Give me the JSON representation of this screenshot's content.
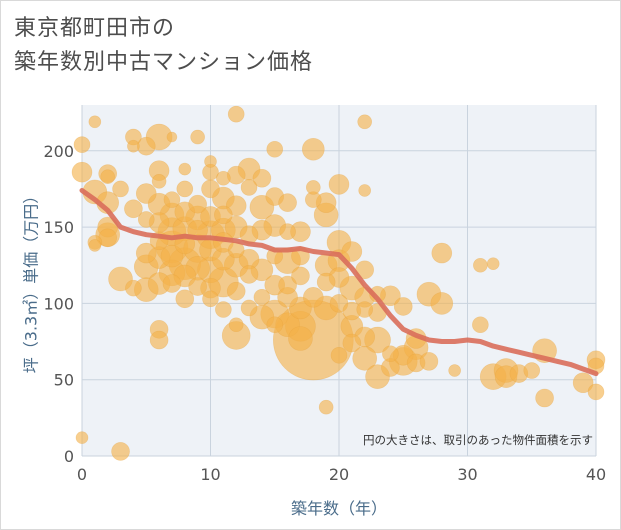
{
  "title_line1": "東京都町田市の",
  "title_line2": "築年数別中古マンション価格",
  "note": "円の大きさは、取引のあった物件面積を示す",
  "colors": {
    "bubble": "#f3b24a",
    "bubble_stroke": "#e6a03a",
    "trend": "#d96e5a",
    "plot_bg": "#eef2f7",
    "grid": "#ffffff",
    "axis_label": "#4a6c8a"
  },
  "chart_data": {
    "type": "scatter",
    "xlabel": "築年数（年）",
    "ylabel": "坪（3.3㎡）単価（万円）",
    "xlim": [
      0,
      40
    ],
    "ylim": [
      0,
      230
    ],
    "x_ticks": [
      0,
      10,
      20,
      30,
      40
    ],
    "y_ticks": [
      0,
      50,
      100,
      150,
      200
    ],
    "grid": true,
    "trend_line": [
      [
        0,
        174
      ],
      [
        1,
        168
      ],
      [
        2,
        161
      ],
      [
        3,
        150
      ],
      [
        4,
        147
      ],
      [
        5,
        145
      ],
      [
        6,
        144
      ],
      [
        7,
        143
      ],
      [
        8,
        144
      ],
      [
        9,
        143
      ],
      [
        10,
        143
      ],
      [
        11,
        142
      ],
      [
        12,
        141
      ],
      [
        13,
        139
      ],
      [
        14,
        138
      ],
      [
        15,
        135
      ],
      [
        16,
        135
      ],
      [
        17,
        136
      ],
      [
        18,
        134
      ],
      [
        19,
        133
      ],
      [
        20,
        132
      ],
      [
        21,
        123
      ],
      [
        22,
        112
      ],
      [
        23,
        103
      ],
      [
        24,
        92
      ],
      [
        25,
        83
      ],
      [
        26,
        79
      ],
      [
        27,
        76
      ],
      [
        28,
        75
      ],
      [
        29,
        75
      ],
      [
        30,
        76
      ],
      [
        31,
        75
      ],
      [
        32,
        72
      ],
      [
        33,
        70
      ],
      [
        34,
        68
      ],
      [
        35,
        66
      ],
      [
        36,
        64
      ],
      [
        37,
        62
      ],
      [
        38,
        60
      ],
      [
        39,
        57
      ],
      [
        40,
        54
      ]
    ],
    "points": [
      [
        0,
        186,
        10
      ],
      [
        0,
        204,
        8
      ],
      [
        0,
        12,
        6
      ],
      [
        1,
        219,
        6
      ],
      [
        1,
        173,
        12
      ],
      [
        1,
        140,
        7
      ],
      [
        1,
        138,
        6
      ],
      [
        2,
        185,
        9
      ],
      [
        2,
        183,
        7
      ],
      [
        2,
        166,
        11
      ],
      [
        2,
        150,
        10
      ],
      [
        2,
        145,
        12
      ],
      [
        2,
        143,
        9
      ],
      [
        3,
        175,
        8
      ],
      [
        3,
        116,
        12
      ],
      [
        3,
        3,
        9
      ],
      [
        4,
        209,
        8
      ],
      [
        4,
        203,
        6
      ],
      [
        4,
        162,
        9
      ],
      [
        4,
        110,
        8
      ],
      [
        5,
        203,
        9
      ],
      [
        5,
        172,
        10
      ],
      [
        5,
        155,
        8
      ],
      [
        5,
        133,
        10
      ],
      [
        5,
        124,
        12
      ],
      [
        5,
        109,
        12
      ],
      [
        6,
        209,
        13
      ],
      [
        6,
        187,
        10
      ],
      [
        6,
        180,
        7
      ],
      [
        6,
        165,
        11
      ],
      [
        6,
        153,
        10
      ],
      [
        6,
        141,
        9
      ],
      [
        6,
        130,
        11
      ],
      [
        6,
        113,
        11
      ],
      [
        6,
        83,
        9
      ],
      [
        6,
        76,
        9
      ],
      [
        7,
        209,
        5
      ],
      [
        7,
        168,
        8
      ],
      [
        7,
        158,
        12
      ],
      [
        7,
        147,
        14
      ],
      [
        7,
        137,
        16
      ],
      [
        7,
        131,
        11
      ],
      [
        7,
        120,
        13
      ],
      [
        7,
        113,
        9
      ],
      [
        8,
        188,
        6
      ],
      [
        8,
        175,
        8
      ],
      [
        8,
        160,
        10
      ],
      [
        8,
        149,
        12
      ],
      [
        8,
        139,
        10
      ],
      [
        8,
        126,
        16
      ],
      [
        8,
        118,
        11
      ],
      [
        8,
        103,
        9
      ],
      [
        9,
        209,
        7
      ],
      [
        9,
        165,
        9
      ],
      [
        9,
        156,
        12
      ],
      [
        9,
        148,
        10
      ],
      [
        9,
        136,
        14
      ],
      [
        9,
        123,
        12
      ],
      [
        9,
        111,
        9
      ],
      [
        10,
        193,
        6
      ],
      [
        10,
        186,
        8
      ],
      [
        10,
        175,
        9
      ],
      [
        10,
        157,
        10
      ],
      [
        10,
        145,
        14
      ],
      [
        10,
        135,
        11
      ],
      [
        10,
        122,
        13
      ],
      [
        10,
        110,
        10
      ],
      [
        10,
        103,
        8
      ],
      [
        11,
        182,
        7
      ],
      [
        11,
        169,
        11
      ],
      [
        11,
        158,
        9
      ],
      [
        11,
        148,
        12
      ],
      [
        11,
        140,
        10
      ],
      [
        11,
        129,
        11
      ],
      [
        11,
        114,
        15
      ],
      [
        11,
        96,
        8
      ],
      [
        12,
        224,
        8
      ],
      [
        12,
        184,
        9
      ],
      [
        12,
        164,
        10
      ],
      [
        12,
        150,
        11
      ],
      [
        12,
        135,
        8
      ],
      [
        12,
        125,
        12
      ],
      [
        12,
        108,
        9
      ],
      [
        12,
        79,
        14
      ],
      [
        12,
        86,
        7
      ],
      [
        13,
        188,
        11
      ],
      [
        13,
        176,
        8
      ],
      [
        13,
        145,
        9
      ],
      [
        13,
        129,
        10
      ],
      [
        13,
        119,
        9
      ],
      [
        13,
        97,
        8
      ],
      [
        14,
        182,
        9
      ],
      [
        14,
        163,
        12
      ],
      [
        14,
        148,
        10
      ],
      [
        14,
        122,
        11
      ],
      [
        14,
        104,
        8
      ],
      [
        14,
        91,
        12
      ],
      [
        15,
        201,
        8
      ],
      [
        15,
        170,
        9
      ],
      [
        15,
        151,
        11
      ],
      [
        15,
        131,
        8
      ],
      [
        15,
        112,
        10
      ],
      [
        15,
        93,
        14
      ],
      [
        15,
        86,
        8
      ],
      [
        16,
        166,
        9
      ],
      [
        16,
        147,
        8
      ],
      [
        16,
        128,
        13
      ],
      [
        16,
        112,
        9
      ],
      [
        16,
        104,
        10
      ],
      [
        16,
        86,
        12
      ],
      [
        17,
        147,
        10
      ],
      [
        17,
        131,
        9
      ],
      [
        17,
        118,
        9
      ],
      [
        17,
        97,
        11
      ],
      [
        17,
        85,
        15
      ],
      [
        17,
        77,
        12
      ],
      [
        18,
        201,
        11
      ],
      [
        18,
        176,
        7
      ],
      [
        18,
        168,
        8
      ],
      [
        18,
        104,
        10
      ],
      [
        18,
        76,
        40
      ],
      [
        19,
        166,
        10
      ],
      [
        19,
        158,
        12
      ],
      [
        19,
        125,
        11
      ],
      [
        19,
        114,
        9
      ],
      [
        19,
        97,
        12
      ],
      [
        19,
        32,
        7
      ],
      [
        20,
        178,
        10
      ],
      [
        20,
        140,
        12
      ],
      [
        20,
        128,
        11
      ],
      [
        20,
        117,
        10
      ],
      [
        20,
        100,
        9
      ],
      [
        20,
        66,
        8
      ],
      [
        21,
        134,
        10
      ],
      [
        21,
        110,
        12
      ],
      [
        21,
        95,
        9
      ],
      [
        21,
        85,
        11
      ],
      [
        21,
        74,
        9
      ],
      [
        22,
        219,
        7
      ],
      [
        22,
        174,
        6
      ],
      [
        22,
        122,
        9
      ],
      [
        22,
        104,
        10
      ],
      [
        22,
        96,
        8
      ],
      [
        22,
        78,
        10
      ],
      [
        22,
        64,
        12
      ],
      [
        23,
        106,
        8
      ],
      [
        23,
        94,
        9
      ],
      [
        23,
        76,
        13
      ],
      [
        23,
        52,
        12
      ],
      [
        24,
        105,
        10
      ],
      [
        24,
        67,
        8
      ],
      [
        24,
        58,
        9
      ],
      [
        25,
        98,
        9
      ],
      [
        25,
        66,
        10
      ],
      [
        25,
        62,
        14
      ],
      [
        26,
        77,
        10
      ],
      [
        26,
        71,
        12
      ],
      [
        26,
        61,
        9
      ],
      [
        27,
        106,
        12
      ],
      [
        27,
        62,
        9
      ],
      [
        28,
        133,
        10
      ],
      [
        28,
        100,
        11
      ],
      [
        29,
        56,
        6
      ],
      [
        31,
        125,
        7
      ],
      [
        31,
        86,
        8
      ],
      [
        32,
        126,
        6
      ],
      [
        32,
        52,
        13
      ],
      [
        33,
        56,
        12
      ],
      [
        33,
        52,
        11
      ],
      [
        34,
        54,
        9
      ],
      [
        35,
        56,
        8
      ],
      [
        36,
        69,
        12
      ],
      [
        36,
        38,
        9
      ],
      [
        39,
        48,
        10
      ],
      [
        40,
        63,
        9
      ],
      [
        40,
        59,
        8
      ],
      [
        40,
        42,
        8
      ]
    ]
  }
}
